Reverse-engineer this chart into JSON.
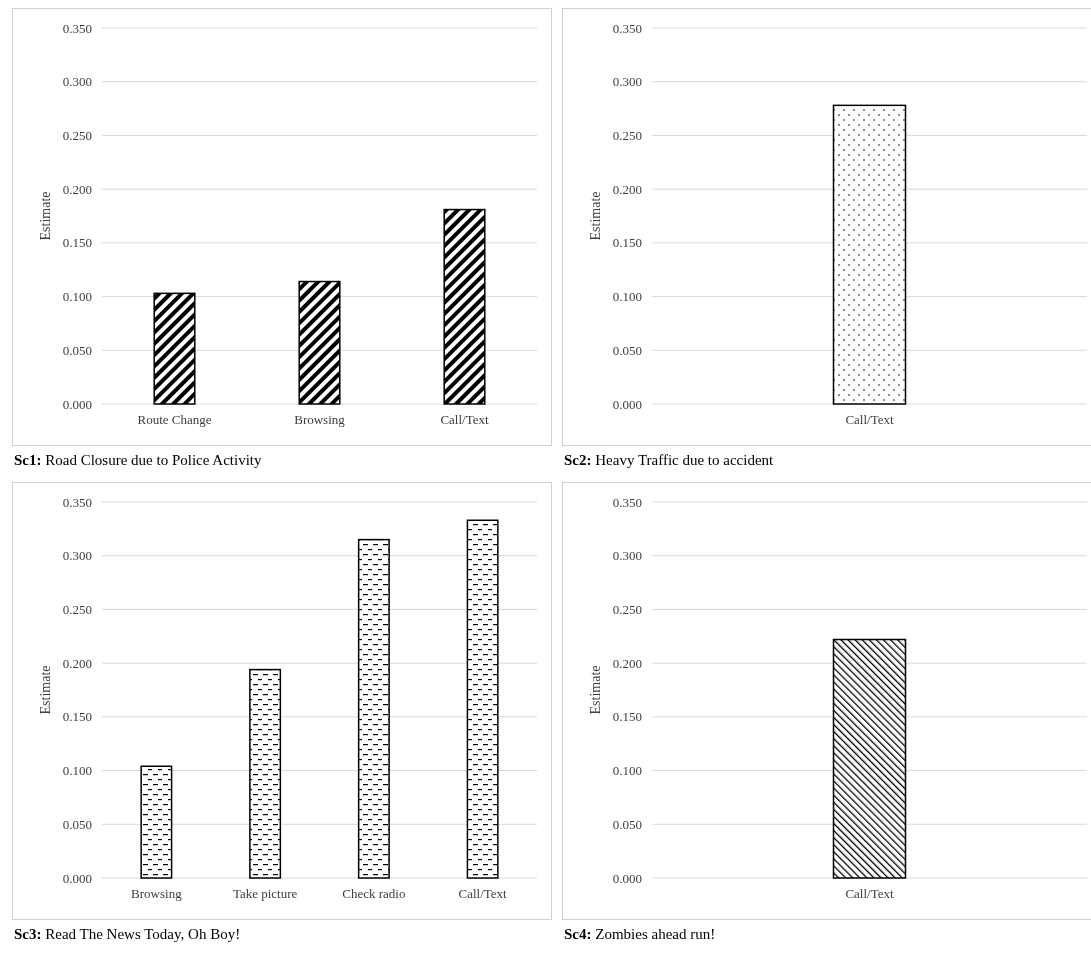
{
  "chart_data": [
    {
      "type": "bar",
      "title": "Sc1: Road Closure due to Police Activity",
      "ylabel": "Estimate",
      "categories": [
        "Route Change",
        "Browsing",
        "Call/Text"
      ],
      "values": [
        0.103,
        0.114,
        0.181
      ],
      "color": "#000000",
      "ylim": [
        0,
        0.35
      ],
      "yticks": [
        {
          "value": 0,
          "label": "0.000"
        },
        {
          "value": 0.05,
          "label": "0.050"
        },
        {
          "value": 0.1,
          "label": "0.100"
        },
        {
          "value": 0.15,
          "label": "0.150"
        },
        {
          "value": 0.2,
          "label": "0.200"
        },
        {
          "value": 0.25,
          "label": "0.250"
        },
        {
          "value": 0.3,
          "label": "0.300"
        },
        {
          "value": 0.35,
          "label": "0.350"
        }
      ],
      "grid": "y"
    },
    {
      "type": "bar",
      "title": "Sc2: Heavy Traffic due to accident",
      "ylabel": "Estimate",
      "categories": [
        "Call/Text"
      ],
      "values": [
        0.278
      ],
      "color": "#000000",
      "ylim": [
        0,
        0.35
      ],
      "yticks": [
        {
          "value": 0,
          "label": "0.000"
        },
        {
          "value": 0.05,
          "label": "0.050"
        },
        {
          "value": 0.1,
          "label": "0.100"
        },
        {
          "value": 0.15,
          "label": "0.150"
        },
        {
          "value": 0.2,
          "label": "0.200"
        },
        {
          "value": 0.25,
          "label": "0.250"
        },
        {
          "value": 0.3,
          "label": "0.300"
        },
        {
          "value": 0.35,
          "label": "0.350"
        }
      ],
      "grid": "y"
    },
    {
      "type": "bar",
      "title": "Sc3: Read The News Today, Oh Boy!",
      "ylabel": "Estimate",
      "categories": [
        "Browsing",
        "Take picture",
        "Check radio",
        "Call/Text"
      ],
      "values": [
        0.104,
        0.194,
        0.315,
        0.333
      ],
      "color": "#000000",
      "ylim": [
        0,
        0.35
      ],
      "yticks": [
        {
          "value": 0,
          "label": "0.000"
        },
        {
          "value": 0.05,
          "label": "0.050"
        },
        {
          "value": 0.1,
          "label": "0.100"
        },
        {
          "value": 0.15,
          "label": "0.150"
        },
        {
          "value": 0.2,
          "label": "0.200"
        },
        {
          "value": 0.25,
          "label": "0.250"
        },
        {
          "value": 0.3,
          "label": "0.300"
        },
        {
          "value": 0.35,
          "label": "0.350"
        }
      ],
      "grid": "y"
    },
    {
      "type": "bar",
      "title": "Sc4: Zombies ahead run!",
      "ylabel": "Estimate",
      "categories": [
        "Call/Text"
      ],
      "values": [
        0.222
      ],
      "color": "#000000",
      "ylim": [
        0,
        0.35
      ],
      "yticks": [
        {
          "value": 0,
          "label": "0.000"
        },
        {
          "value": 0.05,
          "label": "0.050"
        },
        {
          "value": 0.1,
          "label": "0.100"
        },
        {
          "value": 0.15,
          "label": "0.150"
        },
        {
          "value": 0.2,
          "label": "0.200"
        },
        {
          "value": 0.25,
          "label": "0.250"
        },
        {
          "value": 0.3,
          "label": "0.300"
        },
        {
          "value": 0.35,
          "label": "0.350"
        }
      ],
      "grid": "y"
    }
  ]
}
